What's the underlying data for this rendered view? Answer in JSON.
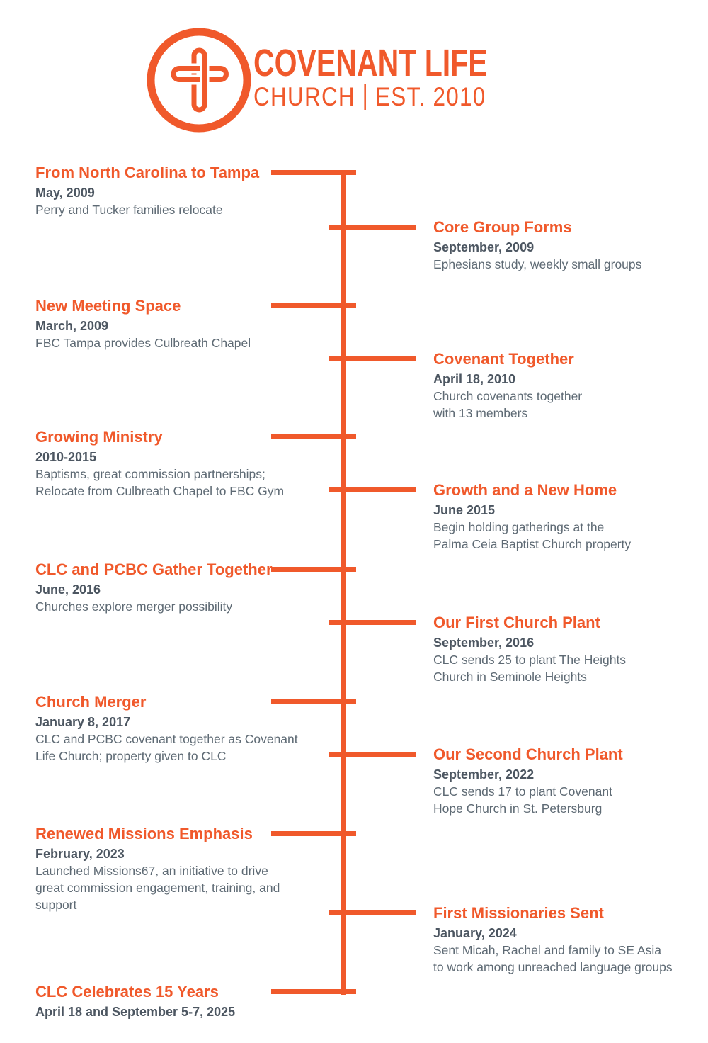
{
  "header": {
    "logo_icon": "cross-in-circle-icon",
    "brand_title": "COVENANT LIFE",
    "brand_subtitle": "CHURCH",
    "brand_established": "EST. 2010"
  },
  "timeline": {
    "entries": [
      {
        "side": "left",
        "title": "From North Carolina to Tampa",
        "date": "May, 2009",
        "description": "Perry and Tucker families relocate"
      },
      {
        "side": "right",
        "title": "Core Group Forms",
        "date": "September, 2009",
        "description": "Ephesians study, weekly small groups"
      },
      {
        "side": "left",
        "title": "New Meeting Space",
        "date": "March, 2009",
        "description": "FBC Tampa provides Culbreath Chapel"
      },
      {
        "side": "right",
        "title": "Covenant Together",
        "date": "April 18, 2010",
        "description": "Church covenants together\nwith 13 members"
      },
      {
        "side": "left",
        "title": "Growing Ministry",
        "date": "2010-2015",
        "description": "Baptisms, great commission partnerships;\nRelocate from Culbreath Chapel to FBC Gym"
      },
      {
        "side": "right",
        "title": "Growth and a New Home",
        "date": "June 2015",
        "description": "Begin holding gatherings at the\nPalma Ceia Baptist Church property"
      },
      {
        "side": "left",
        "title": "CLC and PCBC Gather Together",
        "date": "June, 2016",
        "description": "Churches explore merger possibility"
      },
      {
        "side": "right",
        "title": "Our First Church Plant",
        "date": "September, 2016",
        "description": "CLC sends 25 to plant The Heights\nChurch in Seminole Heights"
      },
      {
        "side": "left",
        "title": "Church Merger",
        "date": "January 8, 2017",
        "description": "CLC and PCBC covenant together as Covenant\nLife Church; property given to CLC"
      },
      {
        "side": "right",
        "title": "Our Second Church Plant",
        "date": "September, 2022",
        "description": "CLC sends 17 to plant Covenant\nHope Church in St. Petersburg"
      },
      {
        "side": "left",
        "title": "Renewed Missions Emphasis",
        "date": "February, 2023",
        "description": "Launched Missions67, an initiative to drive\ngreat commission engagement, training, and\nsupport"
      },
      {
        "side": "right",
        "title": "First Missionaries Sent",
        "date": "January, 2024",
        "description": "Sent Micah, Rachel and family to SE Asia\nto work among unreached language groups"
      },
      {
        "side": "left",
        "title": "CLC Celebrates 15 Years",
        "date": "April 18 and September 5-7, 2025",
        "description": ""
      }
    ]
  },
  "colors": {
    "accent": "#F0592B",
    "date_text": "#4C5661",
    "description_text": "#5E6A74"
  }
}
